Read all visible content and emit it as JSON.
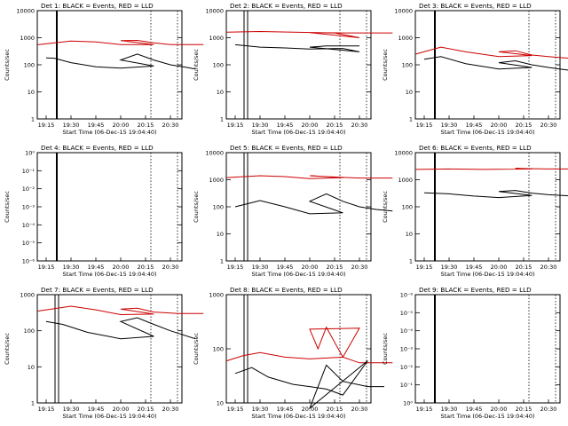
{
  "colors": {
    "events": "#000000",
    "lld": "#cc0000",
    "axis": "#000000",
    "background": "#ffffff"
  },
  "common": {
    "xlabel": "Start Time (06-Dec-15 19:04:40)",
    "ylabel": "Counts/sec",
    "x_ticks": [
      "19:15",
      "19:30",
      "19:45",
      "20:00",
      "20:15",
      "20:30"
    ],
    "x_ticks_alt": [
      "19:15",
      "19:30",
      "19:45",
      "20:00",
      "20:15",
      "20:30"
    ]
  },
  "chart_data": [
    {
      "type": "line",
      "title": "Det 1: BLACK = Events, RED = LLD",
      "det": 1,
      "y_scale": "log",
      "yticks": [
        "1",
        "10",
        "100",
        "1000",
        "10000"
      ],
      "events": [
        [
          19.15,
          180
        ],
        [
          19.2,
          175
        ],
        [
          19.3,
          120
        ],
        [
          19.45,
          85
        ],
        [
          19.6,
          75
        ],
        [
          19.8,
          90
        ],
        [
          20.0,
          150
        ],
        [
          20.1,
          250
        ],
        [
          20.2,
          150
        ],
        [
          20.3,
          100
        ],
        [
          20.4,
          80
        ],
        [
          20.45,
          70
        ]
      ],
      "lld": [
        [
          19.1,
          550
        ],
        [
          19.3,
          750
        ],
        [
          19.45,
          700
        ],
        [
          19.6,
          560
        ],
        [
          19.8,
          560
        ],
        [
          20.0,
          780
        ],
        [
          20.1,
          800
        ],
        [
          20.2,
          650
        ],
        [
          20.3,
          560
        ],
        [
          20.5,
          560
        ]
      ],
      "markers": "solid-dotted"
    },
    {
      "type": "line",
      "title": "Det 2: BLACK = Events, RED = LLD",
      "det": 2,
      "y_scale": "log",
      "yticks": [
        "1",
        "10",
        "100",
        "1000",
        "10000"
      ],
      "events": [
        [
          19.15,
          550
        ],
        [
          19.3,
          450
        ],
        [
          19.45,
          420
        ],
        [
          19.6,
          380
        ],
        [
          19.8,
          400
        ],
        [
          19.9,
          300
        ],
        [
          20.0,
          450
        ],
        [
          20.1,
          500
        ],
        [
          20.3,
          500
        ]
      ],
      "lld": [
        [
          19.1,
          1600
        ],
        [
          19.3,
          1700
        ],
        [
          19.5,
          1600
        ],
        [
          19.75,
          1500
        ],
        [
          19.9,
          1000
        ],
        [
          20.0,
          1550
        ],
        [
          20.2,
          1500
        ],
        [
          20.5,
          1500
        ]
      ],
      "markers": "double-solid"
    },
    {
      "type": "line",
      "title": "Det 3: BLACK = Events, RED = LLD",
      "det": 3,
      "y_scale": "log",
      "yticks": [
        "1",
        "10",
        "100",
        "1000",
        "10000"
      ],
      "events": [
        [
          19.15,
          160
        ],
        [
          19.25,
          200
        ],
        [
          19.4,
          110
        ],
        [
          19.6,
          70
        ],
        [
          19.8,
          80
        ],
        [
          20.0,
          120
        ],
        [
          20.1,
          140
        ],
        [
          20.2,
          100
        ],
        [
          20.3,
          80
        ],
        [
          20.45,
          60
        ]
      ],
      "lld": [
        [
          19.1,
          250
        ],
        [
          19.25,
          450
        ],
        [
          19.4,
          300
        ],
        [
          19.6,
          200
        ],
        [
          19.8,
          220
        ],
        [
          20.0,
          300
        ],
        [
          20.1,
          330
        ],
        [
          20.2,
          230
        ],
        [
          20.3,
          200
        ],
        [
          20.45,
          170
        ]
      ],
      "markers": "solid-dotted"
    },
    {
      "type": "line",
      "title": "Det 4: BLACK = Events, RED = LLD",
      "det": 4,
      "y_scale": "log",
      "yticks": [
        "10⁻⁶",
        "10⁻⁵",
        "10⁻⁴",
        "10⁻³",
        "10⁻²",
        "10⁻¹",
        "10⁰"
      ],
      "events": [],
      "lld": [],
      "markers": "solid-dotted"
    },
    {
      "type": "line",
      "title": "Det 5: BLACK = Events, RED = LLD",
      "det": 5,
      "y_scale": "log",
      "yticks": [
        "1",
        "10",
        "100",
        "1000",
        "10000"
      ],
      "events": [
        [
          19.15,
          100
        ],
        [
          19.3,
          170
        ],
        [
          19.45,
          100
        ],
        [
          19.6,
          55
        ],
        [
          19.8,
          60
        ],
        [
          20.0,
          160
        ],
        [
          20.1,
          300
        ],
        [
          20.2,
          160
        ],
        [
          20.3,
          100
        ],
        [
          20.4,
          80
        ],
        [
          20.5,
          70
        ]
      ],
      "lld": [
        [
          19.1,
          1200
        ],
        [
          19.3,
          1400
        ],
        [
          19.45,
          1300
        ],
        [
          19.6,
          1100
        ],
        [
          19.8,
          1200
        ],
        [
          20.0,
          1400
        ],
        [
          20.1,
          1300
        ],
        [
          20.3,
          1150
        ],
        [
          20.5,
          1150
        ]
      ],
      "markers": "double-solid"
    },
    {
      "type": "line",
      "title": "Det 6: BLACK = Events, RED = LLD",
      "det": 6,
      "y_scale": "log",
      "yticks": [
        "1",
        "10",
        "100",
        "1000",
        "10000"
      ],
      "events": [
        [
          19.15,
          330
        ],
        [
          19.3,
          300
        ],
        [
          19.45,
          250
        ],
        [
          19.6,
          220
        ],
        [
          19.8,
          260
        ],
        [
          20.0,
          370
        ],
        [
          20.1,
          400
        ],
        [
          20.2,
          320
        ],
        [
          20.3,
          280
        ],
        [
          20.45,
          250
        ]
      ],
      "lld": [
        [
          19.1,
          2400
        ],
        [
          19.3,
          2500
        ],
        [
          19.5,
          2400
        ],
        [
          19.8,
          2500
        ],
        [
          20.1,
          2600
        ],
        [
          20.3,
          2500
        ],
        [
          20.5,
          2500
        ]
      ],
      "markers": "solid-dotted"
    },
    {
      "type": "line",
      "title": "Det 7: BLACK = Events, RED = LLD",
      "det": 7,
      "y_scale": "log",
      "yticks": [
        "1",
        "10",
        "100",
        "1000"
      ],
      "events": [
        [
          19.15,
          180
        ],
        [
          19.25,
          150
        ],
        [
          19.4,
          90
        ],
        [
          19.6,
          60
        ],
        [
          19.8,
          70
        ],
        [
          20.0,
          180
        ],
        [
          20.1,
          230
        ],
        [
          20.2,
          150
        ],
        [
          20.3,
          100
        ],
        [
          20.45,
          60
        ]
      ],
      "lld": [
        [
          19.1,
          350
        ],
        [
          19.3,
          480
        ],
        [
          19.45,
          380
        ],
        [
          19.6,
          280
        ],
        [
          19.8,
          290
        ],
        [
          20.0,
          400
        ],
        [
          20.1,
          420
        ],
        [
          20.2,
          330
        ],
        [
          20.35,
          300
        ],
        [
          20.5,
          300
        ]
      ],
      "markers": "double-solid"
    },
    {
      "type": "line",
      "title": "Det 8: BLACK = Events, RED = LLD",
      "det": 8,
      "y_scale": "log",
      "yticks": [
        "10",
        "100",
        "1000"
      ],
      "events": [
        [
          19.15,
          35
        ],
        [
          19.25,
          45
        ],
        [
          19.35,
          30
        ],
        [
          19.5,
          22
        ],
        [
          19.6,
          20
        ],
        [
          19.7,
          18
        ],
        [
          19.8,
          14
        ],
        [
          19.95,
          60
        ],
        [
          20.0,
          8
        ],
        [
          20.1,
          50
        ],
        [
          20.2,
          25
        ],
        [
          20.35,
          20
        ],
        [
          20.45,
          20
        ]
      ],
      "lld": [
        [
          19.1,
          60
        ],
        [
          19.2,
          75
        ],
        [
          19.3,
          85
        ],
        [
          19.45,
          70
        ],
        [
          19.6,
          65
        ],
        [
          19.8,
          70
        ],
        [
          19.9,
          240
        ],
        [
          20.0,
          230
        ],
        [
          20.05,
          100
        ],
        [
          20.1,
          250
        ],
        [
          20.2,
          70
        ],
        [
          20.3,
          55
        ],
        [
          20.5,
          55
        ]
      ],
      "markers": "double-solid"
    },
    {
      "type": "line",
      "title": "Det 9: BLACK = Events, RED = LLD",
      "det": 9,
      "y_scale": "log",
      "yticks": [
        "10⁰",
        "10⁻¹",
        "10⁻²",
        "10⁻³",
        "10⁻⁴",
        "10⁻⁵",
        "10⁻⁶"
      ],
      "events": [],
      "lld": [],
      "markers": "solid-dotted"
    }
  ]
}
